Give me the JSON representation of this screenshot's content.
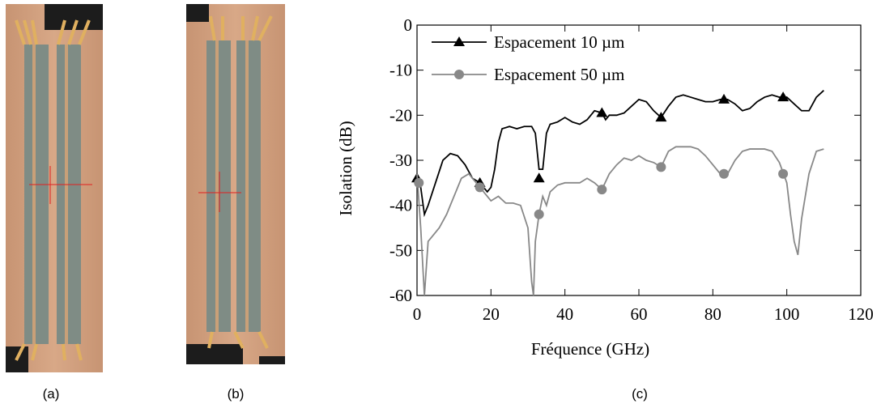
{
  "panels": [
    "(a)",
    "(b)",
    "(c)"
  ],
  "chart_data": {
    "type": "line",
    "xlabel": "Fréquence (GHz)",
    "ylabel": "Isolation (dB)",
    "xlim": [
      0,
      120
    ],
    "ylim": [
      -60,
      0
    ],
    "xticks": [
      0,
      20,
      40,
      60,
      80,
      100,
      120
    ],
    "yticks": [
      0,
      -10,
      -20,
      -30,
      -40,
      -50,
      -60
    ],
    "legend": "upper left",
    "series": [
      {
        "name": "Espacement 10 µm",
        "color": "#000000",
        "marker": "triangle",
        "x": [
          0,
          1,
          2,
          3,
          5,
          7,
          9,
          11,
          13,
          15,
          17,
          19,
          20,
          21,
          22,
          23,
          25,
          27,
          29,
          31,
          32,
          33,
          34,
          35,
          36,
          38,
          40,
          42,
          44,
          46,
          48,
          50,
          51,
          52,
          54,
          56,
          58,
          60,
          62,
          64,
          66,
          68,
          70,
          72,
          74,
          76,
          78,
          80,
          82,
          84,
          86,
          88,
          90,
          92,
          94,
          96,
          98,
          100,
          102,
          104,
          106,
          108,
          110
        ],
        "values": [
          -34,
          -36,
          -42,
          -40,
          -35,
          -30,
          -28.5,
          -29,
          -31,
          -34,
          -35,
          -37,
          -36,
          -32,
          -26,
          -23,
          -22.5,
          -23,
          -22.5,
          -22.5,
          -24,
          -32,
          -32,
          -24,
          -22,
          -21.5,
          -20.5,
          -21.5,
          -22,
          -21,
          -19,
          -19.5,
          -21,
          -20,
          -20,
          -19.5,
          -18,
          -16.5,
          -17,
          -19,
          -20.5,
          -18,
          -16,
          -15.5,
          -16,
          -16.5,
          -17,
          -17,
          -16.5,
          -16.5,
          -17.5,
          -19,
          -18.5,
          -17,
          -16,
          -15.5,
          -16,
          -16,
          -17.5,
          -19,
          -19,
          -16,
          -14.5
        ],
        "marker_x": [
          0,
          17,
          33,
          50,
          66,
          83,
          99
        ],
        "marker_values": [
          -34,
          -35,
          -34,
          -19.5,
          -20.5,
          -16.5,
          -16
        ]
      },
      {
        "name": "Espacement 50 µm",
        "color": "#888888",
        "marker": "circle",
        "x": [
          0,
          1,
          2,
          3,
          4,
          6,
          8,
          10,
          12,
          14,
          16,
          18,
          20,
          22,
          24,
          26,
          28,
          30,
          31,
          31.5,
          32,
          33,
          34,
          35,
          36,
          38,
          40,
          42,
          44,
          46,
          48,
          50,
          52,
          54,
          56,
          58,
          60,
          62,
          64,
          66,
          68,
          70,
          74,
          76,
          78,
          80,
          82,
          84,
          86,
          88,
          90,
          94,
          96,
          98,
          100,
          101,
          102,
          103,
          104,
          106,
          108,
          110
        ],
        "values": [
          -33,
          -45,
          -60,
          -48,
          -47,
          -45,
          -42,
          -38,
          -34,
          -33,
          -35,
          -37,
          -39,
          -38,
          -39.5,
          -39.5,
          -40,
          -45,
          -57,
          -60,
          -48,
          -42,
          -38,
          -40,
          -37,
          -35.5,
          -35,
          -35,
          -35,
          -34,
          -35,
          -36.5,
          -33,
          -31,
          -29.5,
          -30,
          -29,
          -30,
          -30.5,
          -31.5,
          -28,
          -27,
          -27,
          -27.5,
          -29,
          -31,
          -33,
          -33,
          -30,
          -28,
          -27.5,
          -27.5,
          -28,
          -30.5,
          -35,
          -42,
          -48,
          -51,
          -43,
          -33,
          -28,
          -27.5
        ],
        "marker_x": [
          0.5,
          17,
          33,
          50,
          66,
          83,
          99
        ],
        "marker_values": [
          -35,
          -36,
          -42,
          -36.5,
          -31.5,
          -33,
          -33
        ]
      }
    ]
  }
}
